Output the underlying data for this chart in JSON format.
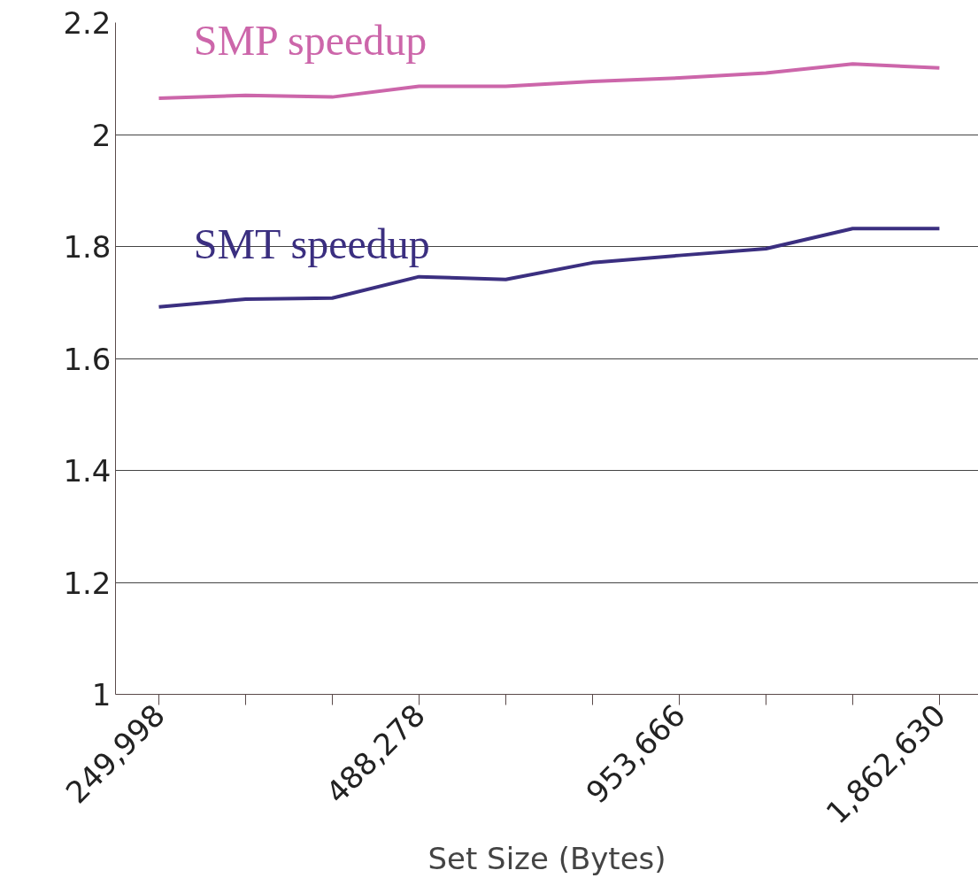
{
  "chart_data": {
    "type": "line",
    "xlabel": "Set Size (Bytes)",
    "categories": [
      "249,998",
      null,
      null,
      "488,278",
      null,
      null,
      "953,666",
      null,
      null,
      "1,862,630"
    ],
    "series": [
      {
        "name": "SMP speedup",
        "color": "#cc66aa",
        "values": [
          2.065,
          2.07,
          2.067,
          2.086,
          2.086,
          2.095,
          2.101,
          2.11,
          2.126,
          2.119
        ]
      },
      {
        "name": "SMT speedup",
        "color": "#3b2f80",
        "values": [
          1.692,
          1.706,
          1.708,
          1.746,
          1.741,
          1.771,
          1.784,
          1.796,
          1.832,
          1.832
        ]
      }
    ],
    "ylim": [
      1,
      2.2
    ],
    "yticks": [
      1,
      1.2,
      1.4,
      1.6,
      1.8,
      2,
      2.2
    ],
    "grid": "y",
    "marker": "none",
    "line_style": "solid"
  }
}
